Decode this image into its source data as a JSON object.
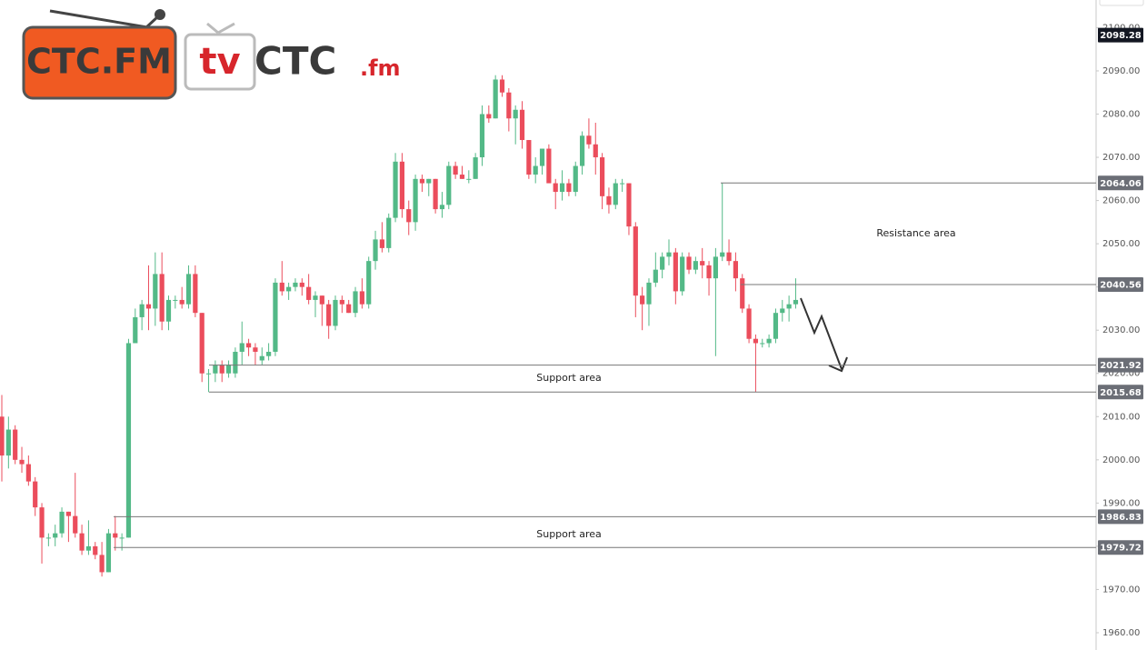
{
  "logo": {
    "left": "CTC.FM",
    "right_tv": "tv",
    "right_ctc": "CTC",
    "right_fm": ".fm"
  },
  "chart_data": {
    "type": "candlestick",
    "up_color": "#53b987",
    "down_color": "#eb4d5c",
    "ylim": [
      1956,
      2106.4
    ],
    "yticks": [
      {
        "value": 1960,
        "label": "1960.00"
      },
      {
        "value": 1970,
        "label": "1970.00"
      },
      {
        "value": 1980,
        "label": "1980.00"
      },
      {
        "value": 1990,
        "label": "1990.00"
      },
      {
        "value": 2000,
        "label": "2000.00"
      },
      {
        "value": 2010,
        "label": "2010.00"
      },
      {
        "value": 2020,
        "label": "2020.00"
      },
      {
        "value": 2030,
        "label": "2030.00"
      },
      {
        "value": 2040,
        "label": "2040.00"
      },
      {
        "value": 2050,
        "label": "2050.00"
      },
      {
        "value": 2060,
        "label": "2060.00"
      },
      {
        "value": 2070,
        "label": "2070.00"
      },
      {
        "value": 2080,
        "label": "2080.00"
      },
      {
        "value": 2090,
        "label": "2090.00"
      },
      {
        "value": 2100,
        "label": "2100.00"
      }
    ],
    "open": [
      2010,
      2001,
      2007,
      2000,
      1999,
      1995,
      1989,
      1982,
      1982,
      1983,
      1988,
      1987,
      1983,
      1979,
      1980,
      1978,
      1974,
      1983,
      1982,
      1982,
      2027,
      2033,
      2036,
      2035,
      2043,
      2032,
      2037,
      2037,
      2036,
      2043,
      2034,
      2020,
      2020,
      2022,
      2020,
      2020,
      2025,
      2027,
      2026,
      2023,
      2024,
      2025,
      2041,
      2039,
      2040,
      2041,
      2040,
      2037,
      2038,
      2036,
      2031,
      2037,
      2036,
      2034,
      2039,
      2036,
      2046,
      2051,
      2049,
      2056,
      2069,
      2058,
      2055,
      2065,
      2064,
      2065,
      2058,
      2059,
      2068,
      2066,
      2065,
      2065,
      2070,
      2080,
      2079,
      2088,
      2085,
      2079,
      2081,
      2074,
      2066,
      2068,
      2072,
      2064,
      2062,
      2064,
      2062,
      2068,
      2075,
      2073,
      2070,
      2061,
      2059,
      2064,
      2064,
      2054,
      2038,
      2036,
      2041,
      2044,
      2047,
      2048,
      2039,
      2047,
      2044,
      2046,
      2045,
      2042,
      2047,
      2048,
      2046,
      2042,
      2035,
      2028,
      2027,
      2027,
      2028,
      2034,
      2035,
      2036
    ],
    "high": [
      2015,
      2010,
      2008,
      2003,
      2001,
      1996,
      1990,
      1983,
      1985,
      1989,
      1988,
      1997,
      1985,
      1986,
      1981,
      1981,
      1984,
      1987,
      1983,
      2028,
      2035,
      2037,
      2045,
      2048,
      2048,
      2038,
      2038,
      2040,
      2045,
      2045,
      2034,
      2021,
      2023,
      2023,
      2023,
      2026,
      2032,
      2028,
      2027,
      2026,
      2027,
      2042,
      2046,
      2041,
      2042,
      2042,
      2043,
      2039,
      2038,
      2037,
      2038,
      2038,
      2037,
      2040,
      2042,
      2047,
      2053,
      2055,
      2057,
      2071,
      2071,
      2060,
      2066,
      2066,
      2065,
      2065,
      2062,
      2069,
      2069,
      2068,
      2067,
      2071,
      2082,
      2082,
      2089,
      2089,
      2086,
      2082,
      2083,
      2074,
      2070,
      2072,
      2073,
      2065,
      2067,
      2065,
      2069,
      2076,
      2079,
      2078,
      2071,
      2063,
      2065,
      2065,
      2064,
      2055,
      2040,
      2042,
      2048,
      2048,
      2051,
      2049,
      2048,
      2048,
      2047,
      2049,
      2046,
      2049,
      2064.06,
      2051,
      2048,
      2043,
      2036,
      2029,
      2028,
      2029,
      2035,
      2037,
      2038,
      2042
    ],
    "low": [
      1995,
      1998,
      1999,
      1997,
      1994,
      1987,
      1976,
      1980,
      1980,
      1982,
      1981,
      1982,
      1978,
      1978,
      1977,
      1973,
      1974,
      1979,
      1979,
      1982,
      2027,
      2030,
      2030,
      2031,
      2030,
      2030,
      2035,
      2035,
      2035,
      2033,
      2018,
      2015.68,
      2018,
      2018,
      2019,
      2019,
      2022,
      2024,
      2022,
      2022,
      2023,
      2024,
      2038,
      2037,
      2039,
      2038,
      2036,
      2033,
      2031,
      2028,
      2030,
      2034,
      2034,
      2033,
      2035,
      2035,
      2044,
      2048,
      2048,
      2055,
      2056,
      2052,
      2053,
      2062,
      2061,
      2057,
      2056,
      2058,
      2065,
      2065,
      2064,
      2065,
      2068,
      2078,
      2079,
      2084,
      2076,
      2073,
      2072,
      2065,
      2064,
      2066,
      2065,
      2058,
      2060,
      2061,
      2061,
      2066,
      2072,
      2066,
      2058,
      2057,
      2058,
      2062,
      2052,
      2033,
      2030,
      2031,
      2040,
      2042,
      2045,
      2036,
      2038,
      2043,
      2043,
      2042,
      2038,
      2024,
      2046,
      2045,
      2039,
      2034,
      2027,
      2015.68,
      2026,
      2026,
      2027,
      2032,
      2032,
      2035
    ],
    "close": [
      2001,
      2007,
      2000,
      1999,
      1995,
      1989,
      1982,
      1982,
      1983,
      1988,
      1987,
      1983,
      1979,
      1980,
      1978,
      1974,
      1983,
      1982,
      1982,
      2027,
      2033,
      2036,
      2035,
      2043,
      2032,
      2037,
      2037,
      2036,
      2043,
      2034,
      2020,
      2020,
      2022,
      2020,
      2022,
      2025,
      2027,
      2026,
      2025,
      2024,
      2025,
      2041,
      2039,
      2040,
      2041,
      2040,
      2037,
      2038,
      2036,
      2031,
      2037,
      2036,
      2034,
      2039,
      2036,
      2046,
      2051,
      2049,
      2056,
      2069,
      2058,
      2055,
      2065,
      2064,
      2065,
      2058,
      2059,
      2068,
      2066,
      2065,
      2065,
      2070,
      2080,
      2079,
      2088,
      2085,
      2079,
      2081,
      2074,
      2066,
      2068,
      2072,
      2064,
      2062,
      2064,
      2062,
      2068,
      2075,
      2073,
      2070,
      2061,
      2059,
      2064,
      2064,
      2054,
      2038,
      2036,
      2041,
      2044,
      2047,
      2048,
      2039,
      2047,
      2044,
      2046,
      2045,
      2042,
      2047,
      2048,
      2046,
      2042,
      2035,
      2028,
      2027,
      2027,
      2028,
      2034,
      2035,
      2036,
      2037
    ],
    "levels": [
      2064.06,
      2040.56,
      2021.92,
      2015.68,
      1986.83,
      1979.72
    ],
    "last_price": 2098.28,
    "annotations": [
      "Resistance area",
      "Support area",
      "Support area"
    ]
  }
}
